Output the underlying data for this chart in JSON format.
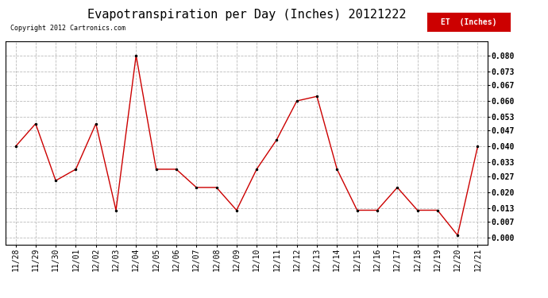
{
  "title": "Evapotranspiration per Day (Inches) 20121222",
  "copyright": "Copyright 2012 Cartronics.com",
  "legend_label": "ET  (Inches)",
  "dates": [
    "11/28",
    "11/29",
    "11/30",
    "12/01",
    "12/02",
    "12/03",
    "12/04",
    "12/05",
    "12/06",
    "12/07",
    "12/08",
    "12/09",
    "12/10",
    "12/11",
    "12/12",
    "12/13",
    "12/14",
    "12/15",
    "12/16",
    "12/17",
    "12/18",
    "12/19",
    "12/20",
    "12/21"
  ],
  "values": [
    0.04,
    0.05,
    0.025,
    0.03,
    0.05,
    0.012,
    0.08,
    0.03,
    0.03,
    0.022,
    0.022,
    0.012,
    0.03,
    0.043,
    0.06,
    0.062,
    0.03,
    0.012,
    0.012,
    0.022,
    0.012,
    0.012,
    0.001,
    0.04
  ],
  "line_color": "#cc0000",
  "marker": ".",
  "marker_color": "#000000",
  "bg_color": "#ffffff",
  "grid_color": "#bbbbbb",
  "yticks": [
    0.0,
    0.007,
    0.013,
    0.02,
    0.027,
    0.033,
    0.04,
    0.047,
    0.053,
    0.06,
    0.067,
    0.073,
    0.08
  ],
  "ylim": [
    -0.003,
    0.086
  ],
  "legend_bg": "#cc0000",
  "legend_text_color": "#ffffff",
  "title_fontsize": 11,
  "copyright_fontsize": 6,
  "tick_fontsize": 7,
  "legend_fontsize": 7
}
